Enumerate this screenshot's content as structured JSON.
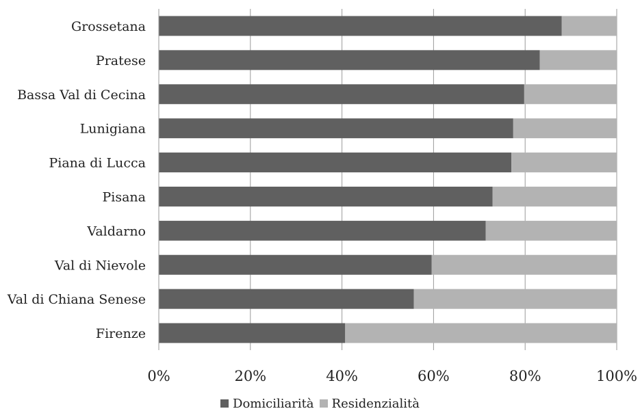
{
  "chart_data": {
    "type": "bar",
    "orientation": "horizontal",
    "stacked": true,
    "percent": true,
    "categories": [
      "Grossetana",
      "Pratese",
      "Bassa Val di Cecina",
      "Lunigiana",
      "Piana di Lucca",
      "Pisana",
      "Valdarno",
      "Val di Nievole",
      "Val di Chiana Senese",
      "Firenze"
    ],
    "series": [
      {
        "name": "Domiciliarità",
        "color": "#606060",
        "values": [
          88,
          83.2,
          79.8,
          77.4,
          77,
          72.9,
          71.4,
          59.6,
          55.7,
          40.7
        ]
      },
      {
        "name": "Residenzialità",
        "color": "#b3b3b3",
        "values": [
          12,
          16.8,
          20.2,
          22.6,
          23,
          27.1,
          28.6,
          40.4,
          44.3,
          59.3
        ]
      }
    ],
    "xlim": [
      0,
      100
    ],
    "x_ticks": [
      "0%",
      "20%",
      "40%",
      "60%",
      "80%",
      "100%"
    ],
    "grid": true,
    "legend_position": "bottom"
  }
}
